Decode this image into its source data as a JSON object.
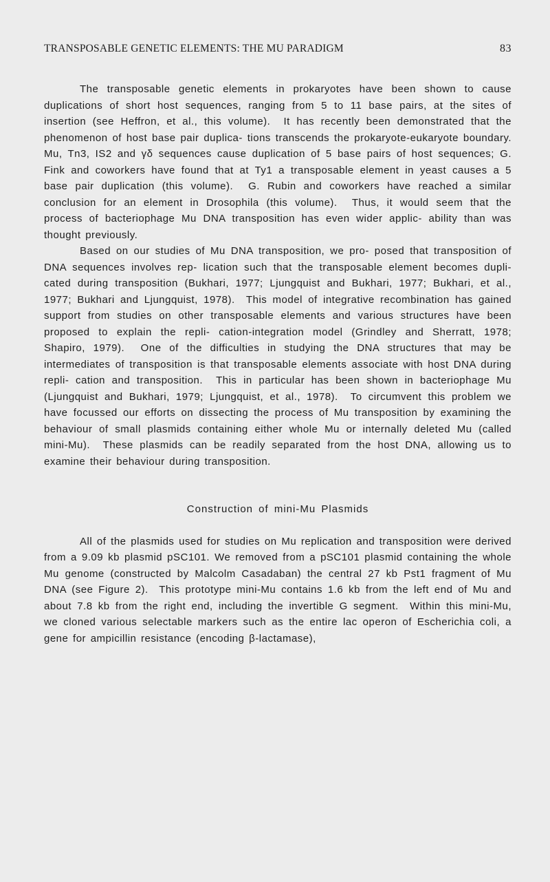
{
  "page": {
    "running_head": "TRANSPOSABLE GENETIC ELEMENTS: THE MU PARADIGM",
    "page_number": "83",
    "background_color": "#ececec",
    "text_color": "#1c1c1c",
    "body_fontsize": 15,
    "line_height": 23.5,
    "header_fontsize": 15.5
  },
  "paragraphs": {
    "p1": "The transposable genetic elements in prokaryotes have been shown to cause duplications of short host sequences, ranging from 5 to 11 base pairs, at the sites of insertion (see Heffron, et al., this volume).  It has recently been demonstrated that the phenomenon of host base pair duplica- tions transcends the prokaryote-eukaryote boundary.  Mu, Tn3, IS2 and γδ sequences cause duplication of 5 base pairs of host sequences; G. Fink and coworkers have found that at Ty1 a transposable element in yeast causes a 5 base pair duplication (this volume).  G. Rubin and coworkers have reached a similar conclusion for an element in Drosophila (this volume).  Thus, it would seem that the process of bacteriophage Mu DNA transposition has even wider applic- ability than was thought previously.",
    "p2": "Based on our studies of Mu DNA transposition, we pro- posed that transposition of DNA sequences involves rep- lication such that the transposable element becomes dupli- cated during transposition (Bukhari, 1977; Ljungquist and Bukhari, 1977; Bukhari, et al., 1977; Bukhari and Ljungquist, 1978).  This model of integrative recombination has gained support from studies on other transposable elements and various structures have been proposed to explain the repli- cation-integration model (Grindley and Sherratt, 1978; Shapiro, 1979).  One of the difficulties in studying the DNA structures that may be intermediates of transposition is that transposable elements associate with host DNA during repli- cation and transposition.  This in particular has been shown in bacteriophage Mu (Ljungquist and Bukhari, 1979; Ljungquist, et al., 1978).  To circumvent this problem we have focussed our efforts on dissecting the process of Mu transposition by examining the behaviour of small plasmids containing either whole Mu or internally deleted Mu (called mini-Mu).  These plasmids can be readily separated from the host DNA, allowing us to examine their behaviour during transposition.",
    "section_title": "Construction of mini-Mu Plasmids",
    "p3": "All of the plasmids used for studies on Mu replication and transposition were derived from a 9.09 kb plasmid pSC101. We removed from a pSC101 plasmid containing the whole Mu genome (constructed by Malcolm Casadaban) the central 27 kb Pst1 fragment of Mu DNA (see Figure 2).  This prototype mini-Mu contains 1.6 kb from the left end of Mu and about 7.8 kb from the right end, including the invertible G segment.  Within this mini-Mu, we cloned various selectable markers such as the entire lac operon of Escherichia coli, a gene for ampicillin resistance (encoding β-lactamase),"
  }
}
